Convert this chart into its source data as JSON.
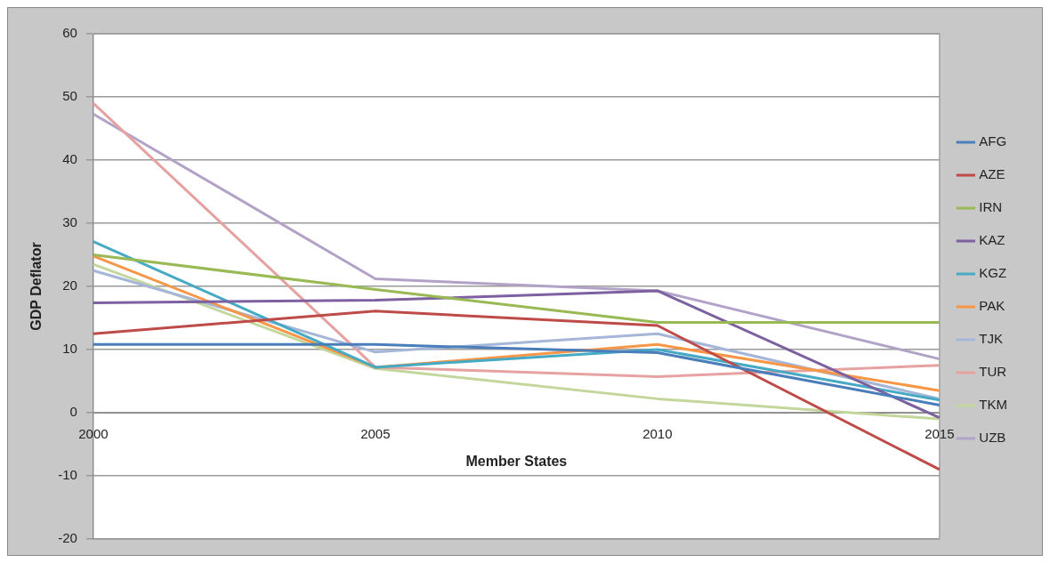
{
  "chart_data": {
    "type": "line",
    "xlabel": "Member States",
    "ylabel": "GDP Deflator",
    "categories": [
      "2000",
      "2005",
      "2010",
      "2015"
    ],
    "ylim": [
      -20,
      60
    ],
    "yticks": [
      -20,
      -10,
      0,
      10,
      20,
      30,
      40,
      50,
      60
    ],
    "grid": "y",
    "legend": "right",
    "marker": "none",
    "line_style": "solid",
    "series": [
      {
        "name": "AFG",
        "color": "#4a7ebb",
        "values": [
          10.8,
          10.8,
          9.5,
          1.2
        ]
      },
      {
        "name": "AZE",
        "color": "#be4b48",
        "values": [
          12.5,
          16.1,
          13.8,
          -9
        ]
      },
      {
        "name": "IRN",
        "color": "#98b954",
        "values": [
          25,
          19.5,
          14.3,
          14.3
        ]
      },
      {
        "name": "KAZ",
        "color": "#7d60a0",
        "values": [
          17.4,
          17.8,
          19.3,
          -0.8
        ]
      },
      {
        "name": "KGZ",
        "color": "#46aac5",
        "values": [
          27.1,
          7.2,
          10,
          2
        ]
      },
      {
        "name": "PAK",
        "color": "#f79646",
        "values": [
          24.8,
          7.2,
          10.8,
          3.5
        ]
      },
      {
        "name": "TJK",
        "color": "#a5b6d8",
        "values": [
          22.5,
          9.6,
          12.5,
          2.2
        ]
      },
      {
        "name": "TUR",
        "color": "#e6a2a0",
        "values": [
          49,
          7.2,
          5.7,
          7.5
        ]
      },
      {
        "name": "TKM",
        "color": "#c3d69b",
        "values": [
          23.5,
          7,
          2.2,
          -1
        ]
      },
      {
        "name": "UZB",
        "color": "#b3a2c7",
        "values": [
          47.3,
          21.2,
          19.3,
          8.5
        ]
      }
    ]
  }
}
